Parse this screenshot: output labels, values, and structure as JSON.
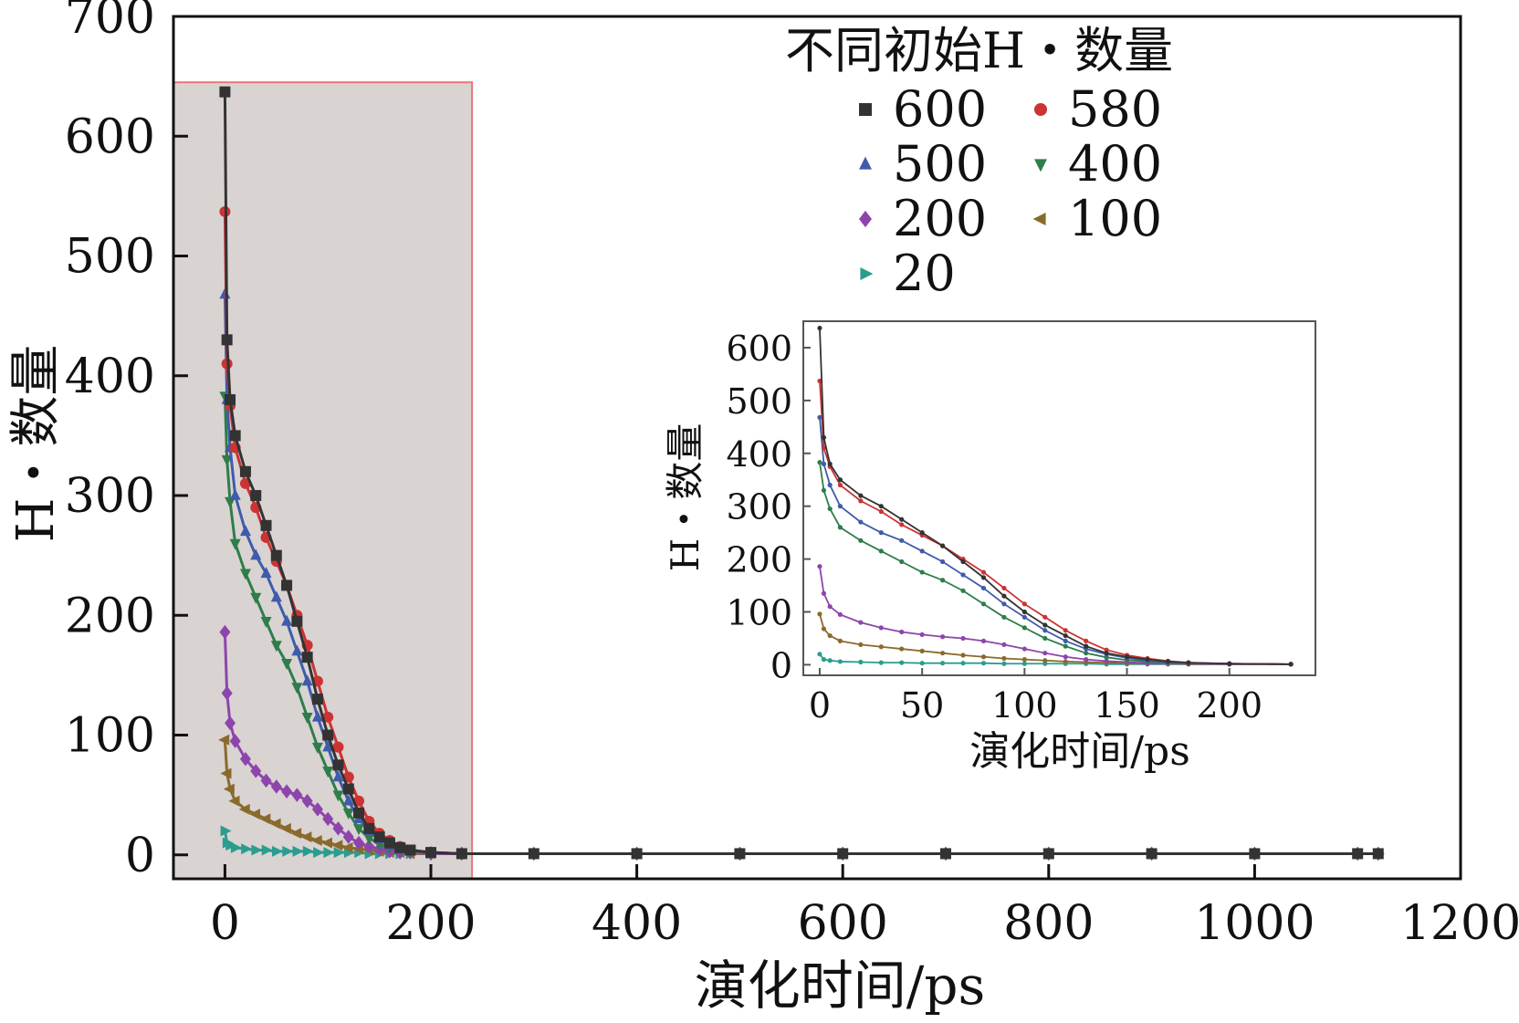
{
  "chart_data": [
    {
      "type": "line",
      "xlabel": "演化时间/ps",
      "ylabel": "H・数量",
      "xlim": [
        -50,
        1200
      ],
      "ylim": [
        -20,
        700
      ],
      "xticks": [
        0,
        200,
        400,
        600,
        800,
        1000,
        1200
      ],
      "yticks": [
        0,
        100,
        200,
        300,
        400,
        500,
        600,
        700
      ],
      "grid": false,
      "highlight_region": {
        "x": [
          -50,
          240
        ],
        "y": [
          -20,
          645
        ]
      },
      "legend": {
        "title": "不同初始H・数量",
        "placement": "top-right"
      },
      "series": [
        {
          "name": "600",
          "color": "#333333",
          "marker": "square",
          "x": [
            0,
            2,
            5,
            10,
            20,
            30,
            40,
            50,
            60,
            70,
            80,
            90,
            100,
            110,
            120,
            130,
            140,
            150,
            160,
            170,
            180,
            200,
            230,
            300,
            400,
            500,
            600,
            700,
            800,
            900,
            1000,
            1100,
            1120
          ],
          "y": [
            637,
            430,
            380,
            350,
            320,
            300,
            275,
            250,
            225,
            195,
            165,
            130,
            100,
            75,
            55,
            35,
            22,
            15,
            10,
            6,
            4,
            2,
            1,
            1,
            1,
            1,
            1,
            1,
            1,
            1,
            1,
            1,
            1
          ]
        },
        {
          "name": "580",
          "color": "#cc3333",
          "marker": "circle",
          "x": [
            0,
            2,
            5,
            10,
            20,
            30,
            40,
            50,
            60,
            70,
            80,
            90,
            100,
            110,
            120,
            130,
            140,
            150,
            160,
            170,
            180,
            200,
            230,
            300,
            400,
            500,
            600,
            700,
            800,
            900,
            1000,
            1100,
            1120
          ],
          "y": [
            537,
            410,
            375,
            340,
            310,
            290,
            265,
            245,
            225,
            200,
            175,
            145,
            115,
            90,
            65,
            45,
            28,
            18,
            12,
            7,
            4,
            2,
            1,
            1,
            1,
            1,
            1,
            1,
            1,
            1,
            1,
            1,
            1
          ]
        },
        {
          "name": "500",
          "color": "#3f5bab",
          "marker": "triangle-up",
          "x": [
            0,
            2,
            5,
            10,
            20,
            30,
            40,
            50,
            60,
            70,
            80,
            90,
            100,
            110,
            120,
            130,
            140,
            150,
            160,
            170,
            180,
            200,
            230,
            300,
            400,
            500,
            600,
            700,
            800,
            900,
            1000,
            1100,
            1120
          ],
          "y": [
            468,
            380,
            340,
            300,
            270,
            250,
            235,
            215,
            195,
            170,
            145,
            115,
            90,
            65,
            45,
            30,
            20,
            13,
            8,
            5,
            3,
            2,
            1,
            1,
            1,
            1,
            1,
            1,
            1,
            1,
            1,
            1,
            1
          ]
        },
        {
          "name": "400",
          "color": "#2e7d4a",
          "marker": "triangle-down",
          "x": [
            0,
            2,
            5,
            10,
            20,
            30,
            40,
            50,
            60,
            70,
            80,
            90,
            100,
            110,
            120,
            130,
            140,
            150,
            160,
            170,
            180,
            200,
            230,
            300,
            400,
            500,
            600,
            700,
            800,
            900,
            1000,
            1100,
            1120
          ],
          "y": [
            383,
            330,
            295,
            260,
            235,
            215,
            195,
            175,
            160,
            140,
            115,
            90,
            70,
            50,
            35,
            22,
            14,
            9,
            6,
            4,
            3,
            2,
            1,
            1,
            1,
            1,
            1,
            1,
            1,
            1,
            1,
            1,
            1
          ]
        },
        {
          "name": "200",
          "color": "#8e44ad",
          "marker": "diamond",
          "x": [
            0,
            2,
            5,
            10,
            20,
            30,
            40,
            50,
            60,
            70,
            80,
            90,
            100,
            110,
            120,
            130,
            140,
            150,
            160,
            170,
            180,
            200,
            230,
            300,
            400,
            500,
            600,
            700,
            800,
            900,
            1000,
            1100,
            1120
          ],
          "y": [
            186,
            135,
            110,
            95,
            80,
            70,
            62,
            57,
            53,
            50,
            45,
            38,
            30,
            22,
            15,
            10,
            7,
            5,
            3,
            2,
            2,
            1,
            1,
            1,
            1,
            1,
            1,
            1,
            1,
            1,
            1,
            1,
            1
          ]
        },
        {
          "name": "100",
          "color": "#8a6a2c",
          "marker": "triangle-left",
          "x": [
            0,
            2,
            5,
            10,
            20,
            30,
            40,
            50,
            60,
            70,
            80,
            90,
            100,
            110,
            120,
            130,
            140,
            150,
            160,
            170,
            180,
            200,
            230,
            300,
            400,
            500,
            600,
            700,
            800,
            900,
            1000,
            1100,
            1120
          ],
          "y": [
            96,
            68,
            55,
            45,
            38,
            34,
            30,
            26,
            22,
            18,
            15,
            12,
            10,
            8,
            6,
            5,
            4,
            3,
            2,
            2,
            1,
            1,
            1,
            1,
            1,
            1,
            1,
            1,
            1,
            1,
            1,
            1,
            1
          ]
        },
        {
          "name": "20",
          "color": "#2a9d8f",
          "marker": "triangle-right",
          "x": [
            0,
            2,
            5,
            10,
            20,
            30,
            40,
            50,
            60,
            70,
            80,
            90,
            100,
            110,
            120,
            130,
            140,
            150,
            160,
            170,
            180,
            200,
            230,
            300,
            400,
            500,
            600,
            700,
            800,
            900,
            1000,
            1100,
            1120
          ],
          "y": [
            20,
            10,
            8,
            6,
            5,
            4,
            4,
            3,
            3,
            3,
            3,
            2,
            2,
            2,
            2,
            2,
            1,
            1,
            1,
            1,
            1,
            1,
            1,
            1,
            1,
            1,
            1,
            1,
            1,
            1,
            1,
            1,
            1
          ]
        }
      ]
    },
    {
      "type": "line",
      "inset": true,
      "xlabel": "演化时间/ps",
      "ylabel": "H・数量",
      "xlim": [
        -8,
        242
      ],
      "ylim": [
        -20,
        650
      ],
      "xticks": [
        0,
        50,
        100,
        150,
        200
      ],
      "yticks": [
        0,
        100,
        200,
        300,
        400,
        500,
        600
      ],
      "series_ref": "same series as main chart, x ≤ 240"
    }
  ]
}
